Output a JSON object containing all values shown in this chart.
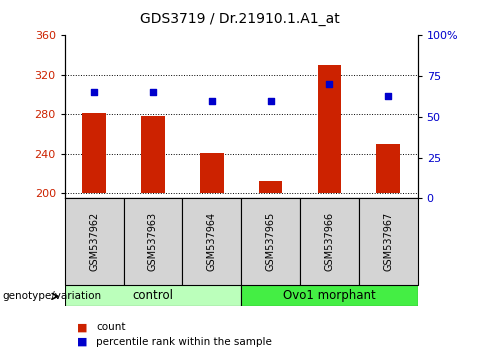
{
  "title": "GDS3719 / Dr.21910.1.A1_at",
  "categories": [
    "GSM537962",
    "GSM537963",
    "GSM537964",
    "GSM537965",
    "GSM537966",
    "GSM537967"
  ],
  "bar_values": [
    281,
    278,
    241,
    212,
    330,
    250
  ],
  "percentile_values": [
    65,
    65,
    60,
    60,
    70,
    63
  ],
  "ylim_left": [
    195,
    360
  ],
  "ylim_right": [
    0,
    100
  ],
  "yticks_left": [
    200,
    240,
    280,
    320,
    360
  ],
  "yticks_right": [
    0,
    25,
    50,
    75,
    100
  ],
  "bar_color": "#cc2200",
  "dot_color": "#0000cc",
  "bar_bottom": 200,
  "group_labels": [
    "control",
    "Ovo1 morphant"
  ],
  "group_colors_light": [
    "#bbffbb",
    "#44ee44"
  ],
  "group_ranges": [
    [
      0,
      3
    ],
    [
      3,
      6
    ]
  ],
  "legend_count_label": "count",
  "legend_percentile_label": "percentile rank within the sample",
  "grid_color": "#000000",
  "title_fontsize": 10,
  "tick_label_fontsize": 8,
  "bar_width": 0.4
}
